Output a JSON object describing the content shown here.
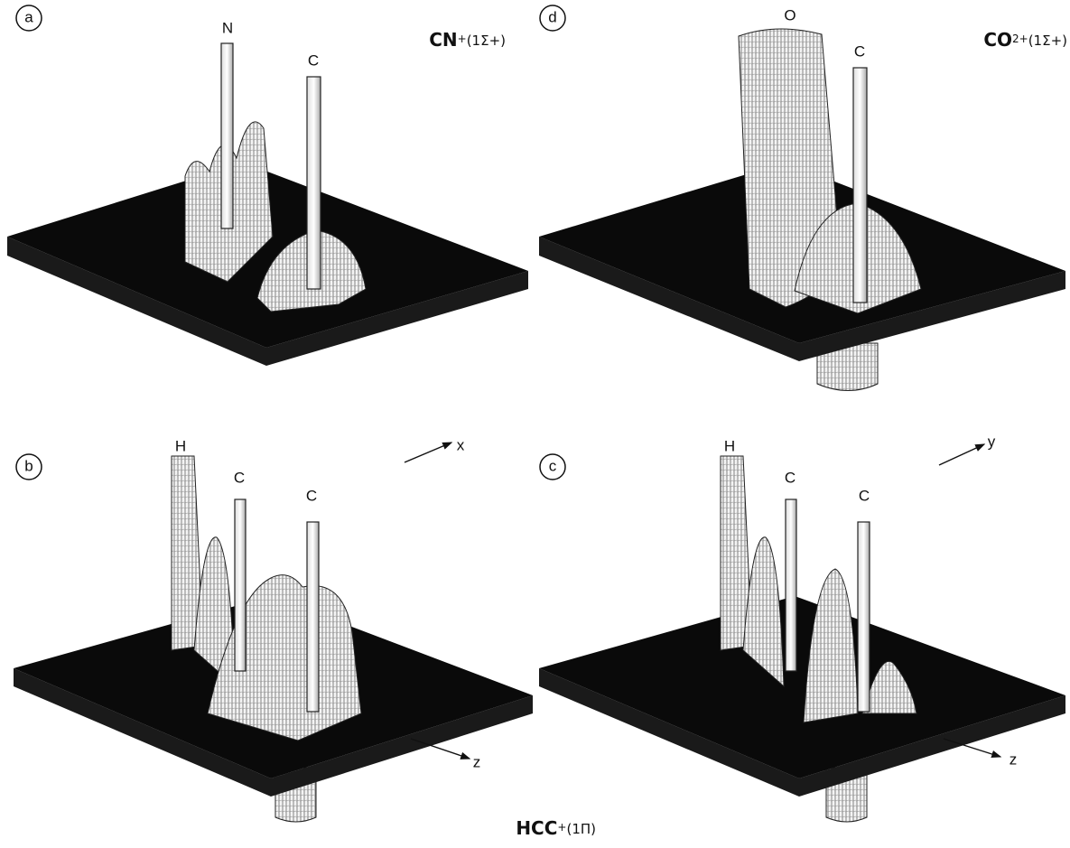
{
  "panels": [
    {
      "letter": "a",
      "title": {
        "formula": "CN",
        "charge": "+",
        "state": "(1Σ+)"
      },
      "atoms": [
        "N",
        "C"
      ]
    },
    {
      "letter": "d",
      "title": {
        "formula": "CO",
        "charge": "2+",
        "state": "(1Σ+)"
      },
      "atoms": [
        "O",
        "C"
      ]
    },
    {
      "letter": "b",
      "atoms": [
        "H",
        "C",
        "C"
      ],
      "axes": [
        "x",
        "z"
      ]
    },
    {
      "letter": "c",
      "atoms": [
        "H",
        "C",
        "C"
      ],
      "axes": [
        "y",
        "z"
      ]
    }
  ],
  "figure_title": {
    "formula": "HCC",
    "charge": "+",
    "state": "(1Π)"
  }
}
